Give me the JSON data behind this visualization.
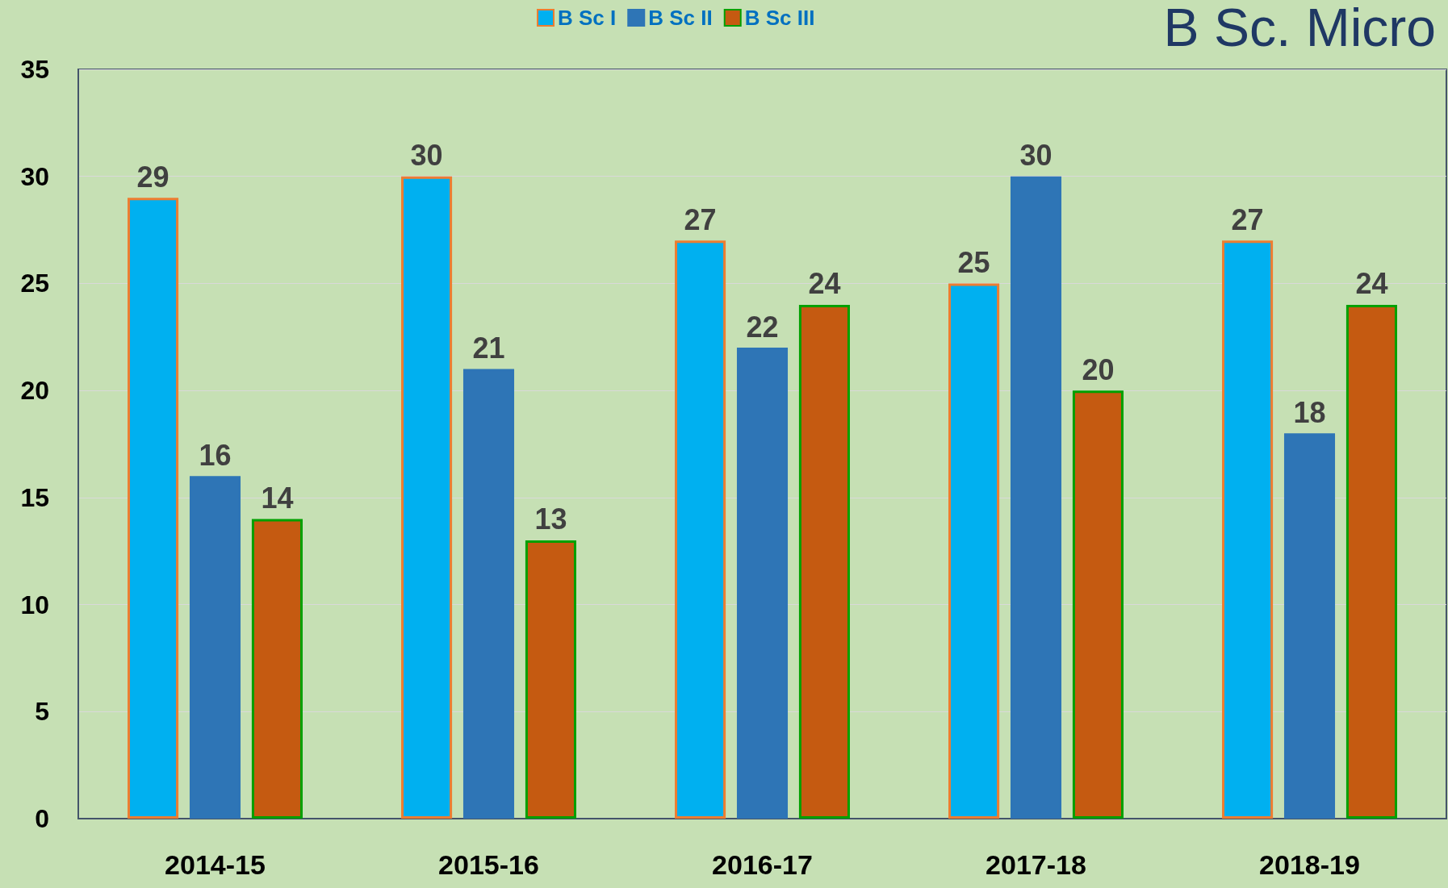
{
  "chart_data": {
    "type": "bar",
    "title": "B Sc. Micro",
    "categories": [
      "2014-15",
      "2015-16",
      "2016-17",
      "2017-18",
      "2018-19"
    ],
    "series": [
      {
        "name": "B Sc I",
        "color": "#00b0f0",
        "values": [
          29,
          30,
          27,
          25,
          27
        ]
      },
      {
        "name": "B Sc II",
        "color": "#2e75b6",
        "values": [
          16,
          21,
          22,
          30,
          18
        ]
      },
      {
        "name": "B Sc III",
        "color": "#c55a11",
        "values": [
          14,
          13,
          24,
          20,
          24
        ]
      }
    ],
    "ylim": [
      0,
      35
    ],
    "yticks": [
      0,
      5,
      10,
      15,
      20,
      25,
      30,
      35
    ],
    "grid": "y",
    "legend": "top",
    "data_labels": true
  }
}
